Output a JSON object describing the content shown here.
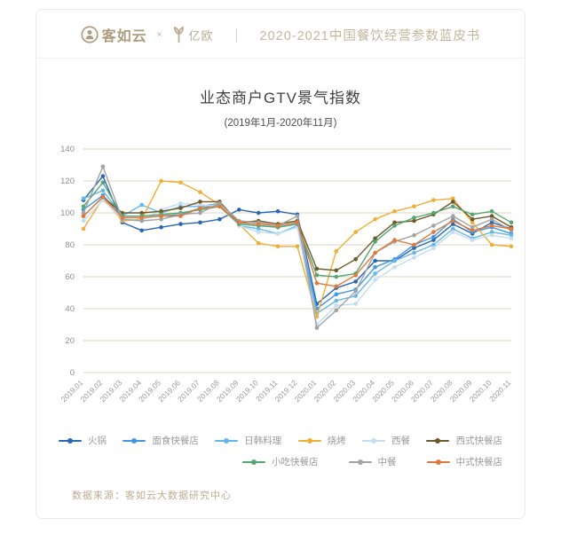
{
  "header": {
    "brand1": "客如云",
    "cross": "×",
    "brand2": "亿欧",
    "divider": "｜",
    "booklet_title": "2020-2021中国餐饮经营参数蓝皮书"
  },
  "chart": {
    "title": "业态商户GTV景气指数",
    "subtitle": "(2019年1月-2020年11月)"
  },
  "source_note": "数据来源：客如云大数据研究中心",
  "colors": {
    "brand_tan": "#ab9c7c",
    "grid": "#dcd5c0",
    "axis_text": "#909090"
  },
  "chart_data": {
    "type": "line",
    "title": "业态商户GTV景气指数",
    "subtitle": "(2019年1月-2020年11月)",
    "xlabel": "",
    "ylabel": "",
    "ylim": [
      0,
      140
    ],
    "ytick_step": 20,
    "grid": true,
    "legend_position": "bottom",
    "x": [
      "2019.01",
      "2019.02",
      "2019.03",
      "2019.04",
      "2019.05",
      "2019.06",
      "2019.07",
      "2019.08",
      "2019.09",
      "2019.10",
      "2019.11",
      "2019.12",
      "2020.01",
      "2020.02",
      "2020.03",
      "2020.04",
      "2020.05",
      "2020.06",
      "2020.07",
      "2020.08",
      "2020.09",
      "2020.10",
      "2020.11"
    ],
    "series": [
      {
        "name": "火锅",
        "color": "#2b66b1",
        "values": [
          108,
          123,
          94,
          89,
          91,
          93,
          94,
          96,
          102,
          100,
          101,
          99,
          43,
          53,
          57,
          70,
          70,
          78,
          83,
          93,
          87,
          94,
          90
        ]
      },
      {
        "name": "面食快餐店",
        "color": "#4197e3",
        "values": [
          102,
          111,
          97,
          97,
          98,
          99,
          103,
          105,
          93,
          92,
          91,
          93,
          40,
          49,
          52,
          66,
          71,
          80,
          85,
          96,
          88,
          91,
          87
        ]
      },
      {
        "name": "日韩料理",
        "color": "#67b6ea",
        "values": [
          109,
          114,
          98,
          105,
          100,
          104,
          104,
          106,
          92,
          90,
          87,
          92,
          37,
          45,
          48,
          62,
          70,
          75,
          80,
          90,
          84,
          88,
          86
        ]
      },
      {
        "name": "烧烤",
        "color": "#f0ae37",
        "values": [
          90,
          109,
          95,
          96,
          120,
          119,
          113,
          105,
          93,
          81,
          79,
          79,
          35,
          76,
          88,
          96,
          101,
          104,
          108,
          109,
          94,
          80,
          79
        ]
      },
      {
        "name": "西餐",
        "color": "#c4ddf0",
        "values": [
          95,
          108,
          96,
          95,
          102,
          106,
          105,
          104,
          92,
          88,
          87,
          91,
          30,
          42,
          43,
          58,
          66,
          72,
          78,
          88,
          83,
          86,
          84
        ]
      },
      {
        "name": "西式快餐店",
        "color": "#6e5a28",
        "values": [
          98,
          110,
          100,
          100,
          101,
          103,
          107,
          107,
          94,
          95,
          93,
          95,
          65,
          64,
          71,
          84,
          94,
          95,
          99,
          107,
          96,
          98,
          91
        ]
      },
      {
        "name": "小吃快餐店",
        "color": "#54a673",
        "values": [
          104,
          119,
          98,
          98,
          99,
          100,
          102,
          104,
          93,
          92,
          91,
          93,
          61,
          60,
          62,
          82,
          92,
          97,
          100,
          104,
          99,
          101,
          94
        ]
      },
      {
        "name": "中餐",
        "color": "#a3a3a3",
        "values": [
          100,
          129,
          96,
          95,
          96,
          99,
          100,
          106,
          95,
          94,
          92,
          98,
          28,
          39,
          51,
          75,
          82,
          86,
          92,
          98,
          91,
          96,
          89
        ]
      },
      {
        "name": "中式快餐店",
        "color": "#dd7b3e",
        "values": [
          98,
          110,
          97,
          97,
          98,
          98,
          103,
          104,
          94,
          93,
          92,
          94,
          56,
          54,
          61,
          75,
          83,
          80,
          88,
          95,
          89,
          92,
          90
        ]
      }
    ]
  }
}
